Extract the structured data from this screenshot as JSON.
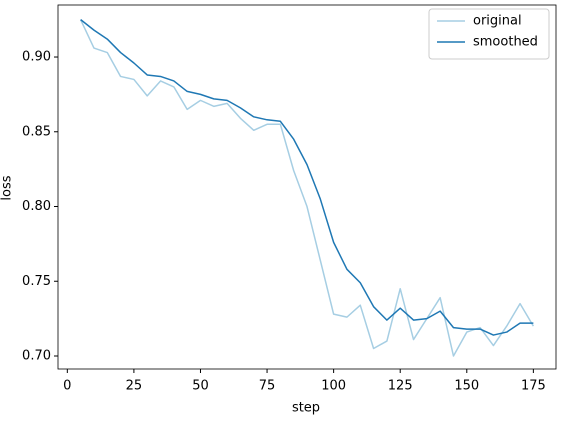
{
  "chart_data": {
    "type": "line",
    "xlabel": "step",
    "ylabel": "loss",
    "x": [
      5,
      10,
      15,
      20,
      25,
      30,
      35,
      40,
      45,
      50,
      55,
      60,
      65,
      70,
      75,
      80,
      85,
      90,
      95,
      100,
      105,
      110,
      115,
      120,
      125,
      130,
      135,
      140,
      145,
      150,
      155,
      160,
      165,
      170,
      175
    ],
    "series": [
      {
        "name": "original",
        "color": "#a6cee3",
        "values": [
          0.925,
          0.906,
          0.903,
          0.887,
          0.885,
          0.874,
          0.884,
          0.88,
          0.865,
          0.871,
          0.867,
          0.869,
          0.859,
          0.851,
          0.855,
          0.855,
          0.824,
          0.8,
          0.764,
          0.728,
          0.726,
          0.734,
          0.705,
          0.71,
          0.745,
          0.711,
          0.725,
          0.739,
          0.7,
          0.716,
          0.719,
          0.707,
          0.72,
          0.735,
          0.72
        ]
      },
      {
        "name": "smoothed",
        "color": "#1f78b4",
        "values": [
          0.925,
          0.918,
          0.912,
          0.903,
          0.896,
          0.888,
          0.887,
          0.884,
          0.877,
          0.875,
          0.872,
          0.871,
          0.866,
          0.86,
          0.858,
          0.857,
          0.845,
          0.828,
          0.805,
          0.776,
          0.758,
          0.749,
          0.733,
          0.724,
          0.732,
          0.724,
          0.725,
          0.73,
          0.719,
          0.718,
          0.718,
          0.714,
          0.716,
          0.722,
          0.722
        ]
      }
    ],
    "xlim": [
      -3.5,
      183.5
    ],
    "xticks": [
      0,
      25,
      50,
      75,
      100,
      125,
      150,
      175
    ],
    "ylim": [
      0.6913,
      0.9348
    ],
    "yticks": [
      {
        "value": 0.7,
        "label": "0.70"
      },
      0.75,
      {
        "value": 0.8,
        "label": "0.80"
      },
      0.85,
      {
        "value": 0.9,
        "label": "0.90"
      }
    ],
    "legend": "upper right"
  }
}
